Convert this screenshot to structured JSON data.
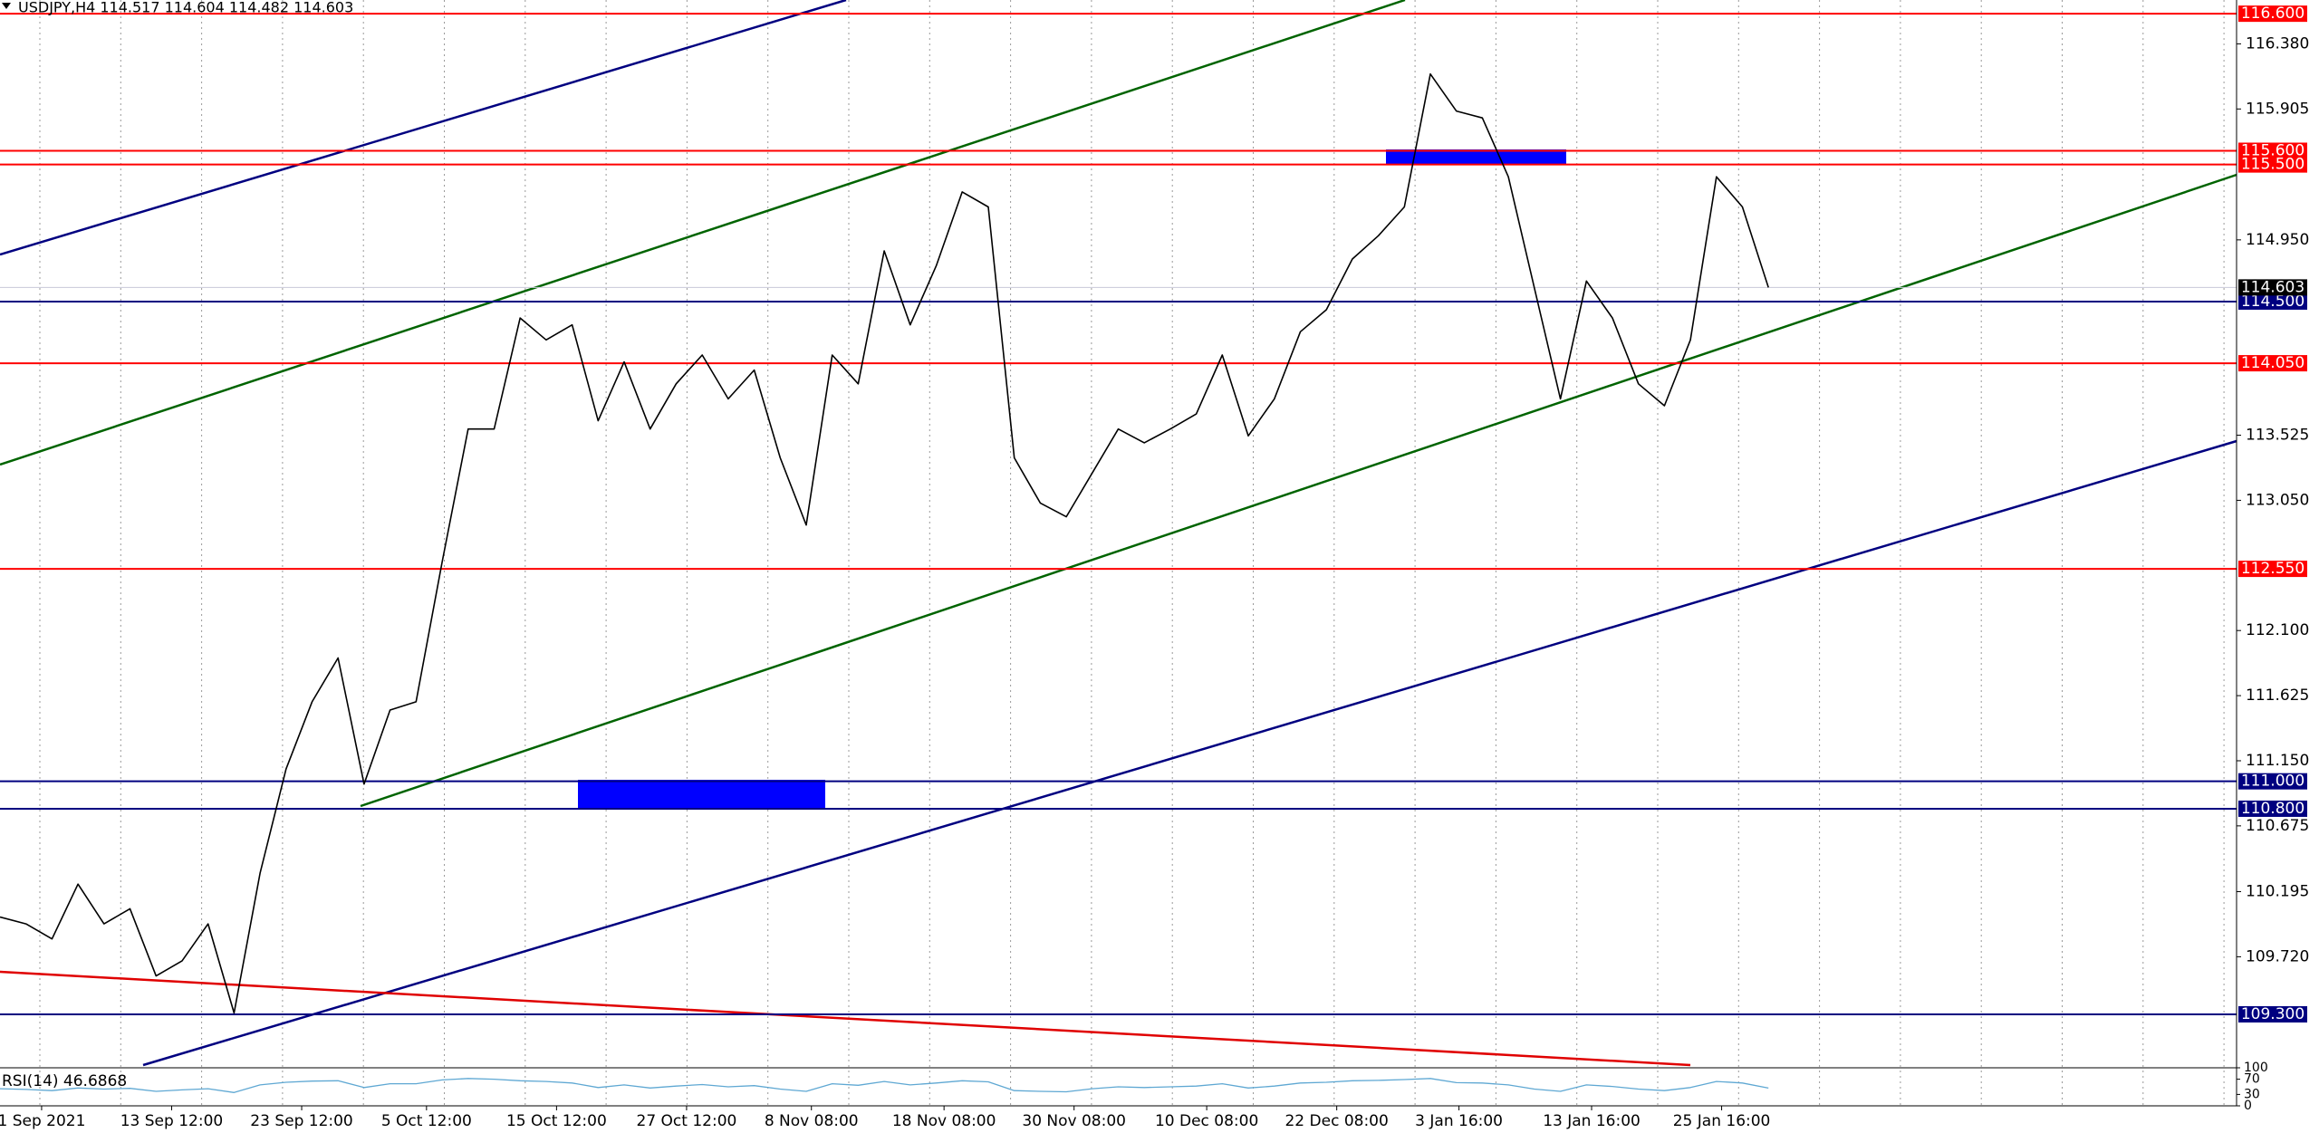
{
  "chart_data": {
    "type": "line",
    "title": "USDJPY,H4  114.517 114.604 114.482 114.603",
    "xlim": [
      0,
      86
    ],
    "xticks": [
      {
        "value": 1.6,
        "label": "1 Sep 2021"
      },
      {
        "value": 6.6,
        "label": "13 Sep 12:00"
      },
      {
        "value": 11.6,
        "label": "23 Sep 12:00"
      },
      {
        "value": 16.4,
        "label": "5 Oct 12:00"
      },
      {
        "value": 21.4,
        "label": "15 Oct 12:00"
      },
      {
        "value": 26.4,
        "label": "27 Oct 12:00"
      },
      {
        "value": 31.2,
        "label": "8 Nov 08:00"
      },
      {
        "value": 36.3,
        "label": "18 Nov 08:00"
      },
      {
        "value": 41.3,
        "label": "30 Nov 08:00"
      },
      {
        "value": 46.4,
        "label": "10 Dec 08:00"
      },
      {
        "value": 51.4,
        "label": "22 Dec 08:00"
      },
      {
        "value": 56.1,
        "label": "3 Jan 16:00"
      },
      {
        "value": 61.2,
        "label": "13 Jan 16:00"
      },
      {
        "value": 66.2,
        "label": "25 Jan 16:00"
      }
    ],
    "ylim": [
      108.91,
      116.7
    ],
    "yticks": [
      {
        "value": 116.38,
        "label": "116.380"
      },
      {
        "value": 115.905,
        "label": "115.905"
      },
      {
        "value": 114.95,
        "label": "114.950"
      },
      {
        "value": 113.525,
        "label": "113.525"
      },
      {
        "value": 113.05,
        "label": "113.050"
      },
      {
        "value": 112.1,
        "label": "112.100"
      },
      {
        "value": 111.625,
        "label": "111.625"
      },
      {
        "value": 111.15,
        "label": "111.150"
      },
      {
        "value": 110.675,
        "label": "110.675"
      },
      {
        "value": 110.195,
        "label": "110.195"
      },
      {
        "value": 109.72,
        "label": "109.720"
      }
    ],
    "series": [
      {
        "color": "#000000",
        "values": [
          110.01,
          109.96,
          109.85,
          110.25,
          109.96,
          110.07,
          109.58,
          109.69,
          109.96,
          109.31,
          110.33,
          111.09,
          111.58,
          111.9,
          110.98,
          111.52,
          111.58,
          112.6,
          113.57,
          113.57,
          114.38,
          114.22,
          114.33,
          113.63,
          114.06,
          113.57,
          113.9,
          114.11,
          113.79,
          114.0,
          113.36,
          112.87,
          114.11,
          113.9,
          114.87,
          114.33,
          114.76,
          115.3,
          115.19,
          113.36,
          113.03,
          112.93,
          113.25,
          113.57,
          113.47,
          113.57,
          113.68,
          114.11,
          113.52,
          113.79,
          114.28,
          114.44,
          114.81,
          114.98,
          115.19,
          116.16,
          115.89,
          115.84,
          115.41,
          114.6,
          113.79,
          114.65,
          114.38,
          113.9,
          113.74,
          114.22,
          115.41,
          115.19,
          114.603
        ]
      }
    ],
    "levels": [
      {
        "value": 116.6,
        "label": "116.600",
        "color": "#ff0000"
      },
      {
        "value": 115.6,
        "label": "115.600",
        "color": "#ff0000"
      },
      {
        "value": 115.5,
        "label": "115.500",
        "color": "#ff0000"
      },
      {
        "value": 114.5,
        "label": "114.500",
        "color": "#000080"
      },
      {
        "value": 114.05,
        "label": "114.050",
        "color": "#ff0000"
      },
      {
        "value": 112.55,
        "label": "112.550",
        "color": "#ff0000"
      },
      {
        "value": 111.0,
        "label": "111.000",
        "color": "#000080"
      },
      {
        "value": 110.8,
        "label": "110.800",
        "color": "#000080"
      },
      {
        "value": 109.3,
        "label": "109.300",
        "color": "#000080"
      }
    ],
    "current_price": {
      "value": 114.603,
      "label": "114.603",
      "color": "#000000"
    },
    "rsi": {
      "label": "RSI(14) 46.6868",
      "ylim": [
        0,
        100
      ],
      "yticks": [
        100,
        70,
        30,
        0
      ],
      "color": "#5fa8d3",
      "values": [
        45,
        43,
        40,
        47,
        44,
        46,
        38,
        42,
        45,
        35,
        55,
        62,
        65,
        66,
        48,
        58,
        58,
        68,
        72,
        70,
        66,
        64,
        60,
        48,
        55,
        47,
        52,
        56,
        50,
        53,
        44,
        38,
        58,
        54,
        64,
        55,
        60,
        66,
        63,
        40,
        38,
        37,
        45,
        50,
        48,
        50,
        52,
        58,
        47,
        52,
        60,
        62,
        66,
        67,
        69,
        72,
        61,
        60,
        55,
        44,
        38,
        55,
        51,
        44,
        40,
        48,
        64,
        60,
        46.6868
      ]
    }
  }
}
